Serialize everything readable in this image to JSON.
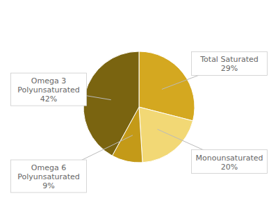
{
  "chart_data": {
    "type": "pie",
    "categories": [
      "Total Saturated",
      "Monounsaturated",
      "Omega 6\nPolyunsaturated",
      "Omega 3\nPolyunsaturated"
    ],
    "values": [
      29,
      20,
      9,
      42
    ],
    "value_labels": [
      "29%",
      "20%",
      "9%",
      "42%"
    ],
    "data_labels": true,
    "colors": [
      "#D4A820",
      "#F2D875",
      "#C49A18",
      "#7A6410"
    ]
  }
}
